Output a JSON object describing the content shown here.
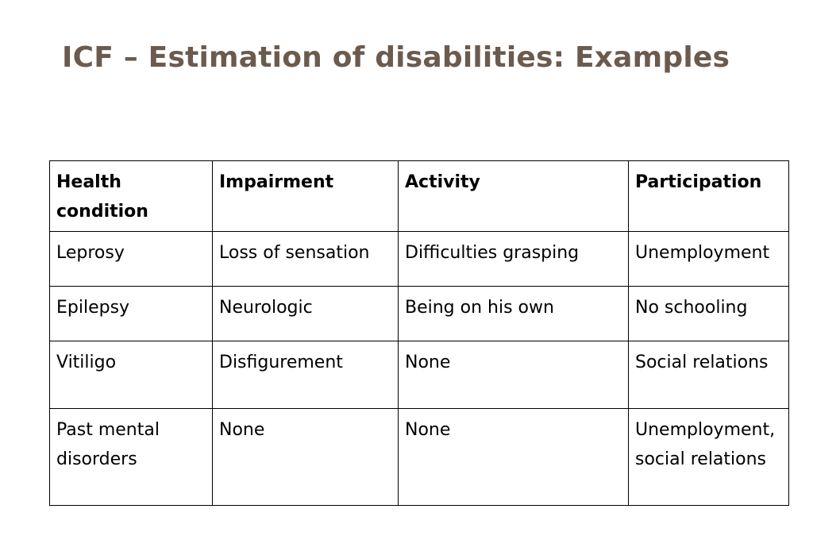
{
  "slide": {
    "title": "ICF – Estimation of disabilities: Examples"
  },
  "table": {
    "headers": [
      "Health condition",
      "Impairment",
      "Activity",
      "Participation"
    ],
    "rows": [
      [
        "Leprosy",
        "Loss of sensation",
        "Difficulties grasping",
        "Unemployment"
      ],
      [
        "Epilepsy",
        "Neurologic",
        "Being on his own",
        "No schooling"
      ],
      [
        "Vitiligo",
        "Disfigurement",
        "None",
        "Social relations"
      ],
      [
        "Past mental disorders",
        "None",
        "None",
        "Unemployment, social relations"
      ]
    ]
  },
  "colors": {
    "title": "#6b5b4f",
    "border": "#000000",
    "background": "#ffffff"
  }
}
